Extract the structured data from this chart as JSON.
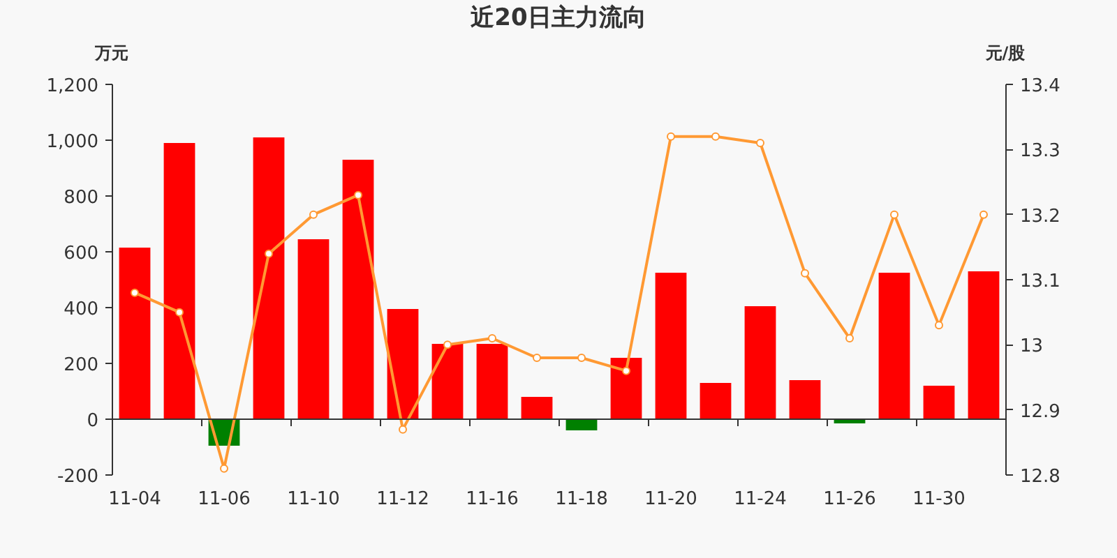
{
  "chart_data": {
    "type": "bar",
    "title": "近20日主力流向",
    "ylabel": "万元",
    "y2label": "元/股",
    "categories": [
      "11-04",
      null,
      "11-06",
      null,
      "11-10",
      null,
      "11-12",
      null,
      "11-16",
      null,
      "11-18",
      null,
      "11-20",
      null,
      "11-24",
      null,
      "11-26",
      null,
      "11-30",
      null
    ],
    "ylim": [
      -200,
      1200
    ],
    "yticks": [
      -200,
      0,
      200,
      400,
      600,
      800,
      {
        "value": 1000,
        "label": "1,000"
      },
      {
        "value": 1200,
        "label": "1,200"
      }
    ],
    "y2lim": [
      12.8,
      13.4
    ],
    "y2ticks": [
      12.8,
      12.9,
      13,
      13.1,
      13.2,
      13.3,
      13.4
    ],
    "marker": "circle",
    "series": [
      {
        "values": [
          615,
          990,
          -95,
          1010,
          645,
          930,
          395,
          270,
          270,
          80,
          -40,
          220,
          525,
          130,
          405,
          140,
          -15,
          525,
          120,
          530
        ],
        "colors": [
          "#ff0000",
          "#ff0000",
          "#008000",
          "#ff0000",
          "#ff0000",
          "#ff0000",
          "#ff0000",
          "#ff0000",
          "#ff0000",
          "#ff0000",
          "#008000",
          "#ff0000",
          "#ff0000",
          "#ff0000",
          "#ff0000",
          "#ff0000",
          "#008000",
          "#ff0000",
          "#ff0000",
          "#ff0000"
        ]
      },
      {
        "type": "line",
        "axis": "y2",
        "color": "#ff9933",
        "values": [
          13.08,
          13.05,
          12.81,
          13.14,
          13.2,
          13.23,
          12.87,
          13.0,
          13.01,
          12.98,
          12.98,
          12.96,
          13.32,
          13.32,
          13.31,
          13.11,
          13.01,
          13.2,
          13.03,
          13.2
        ]
      }
    ]
  }
}
